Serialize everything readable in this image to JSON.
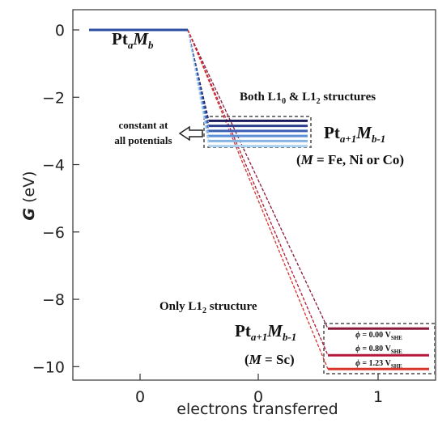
{
  "chart_data": {
    "type": "energy-levels",
    "xlabel": "electrons  transferred",
    "ylabel": [
      "G",
      " (eV)"
    ],
    "categories": [
      "0",
      "0",
      "1"
    ],
    "ylim": [
      -10.4,
      0.6
    ],
    "yticks": [
      {
        "value": -10,
        "label": "−10"
      },
      {
        "value": -8,
        "label": "−8"
      },
      {
        "value": -6,
        "label": "−6"
      },
      {
        "value": -4,
        "label": "−4"
      },
      {
        "value": -2,
        "label": "−2"
      },
      0
    ],
    "base": {
      "color": "#2b4ea3",
      "value": 0
    },
    "series": [
      {
        "color": "#1c1c5c",
        "values": [
          null,
          -2.7,
          null
        ]
      },
      {
        "color": "#2c3f8e",
        "values": [
          null,
          -2.85,
          null
        ]
      },
      {
        "color": "#3a5fb5",
        "values": [
          null,
          -3.0,
          null
        ]
      },
      {
        "color": "#5b8fd6",
        "values": [
          null,
          -3.15,
          null
        ]
      },
      {
        "color": "#85b4e3",
        "values": [
          null,
          -3.3,
          null
        ]
      },
      {
        "color": "#aed3f0",
        "values": [
          null,
          -3.45,
          null
        ]
      },
      {
        "color": "#8b1a3a",
        "values": [
          null,
          null,
          -8.87
        ]
      },
      {
        "color": "#b3183a",
        "values": [
          null,
          null,
          -9.66
        ]
      },
      {
        "color": "#d9342b",
        "values": [
          null,
          null,
          -10.07
        ]
      }
    ],
    "annotations": [
      [
        "Pt",
        "a",
        "M",
        "b"
      ],
      [
        "Both L1",
        "0",
        " & L1",
        "2",
        " structures"
      ],
      [
        "constant at",
        "all potentials"
      ],
      [
        "Pt",
        "a+1",
        "M",
        "b-1"
      ],
      [
        "(",
        "M",
        " = Fe, Ni or Co)"
      ],
      [
        "Only L1",
        "2",
        " structure"
      ],
      [
        "Pt",
        "a+1",
        "M",
        "b-1"
      ],
      [
        "(",
        "M",
        " = Sc)"
      ],
      [
        "ϕ",
        " = 0.00 V",
        "SHE"
      ],
      [
        "ϕ",
        " = 0.80 V",
        "SHE"
      ],
      [
        "ϕ",
        " = 1.23 V",
        "SHE"
      ]
    ]
  }
}
